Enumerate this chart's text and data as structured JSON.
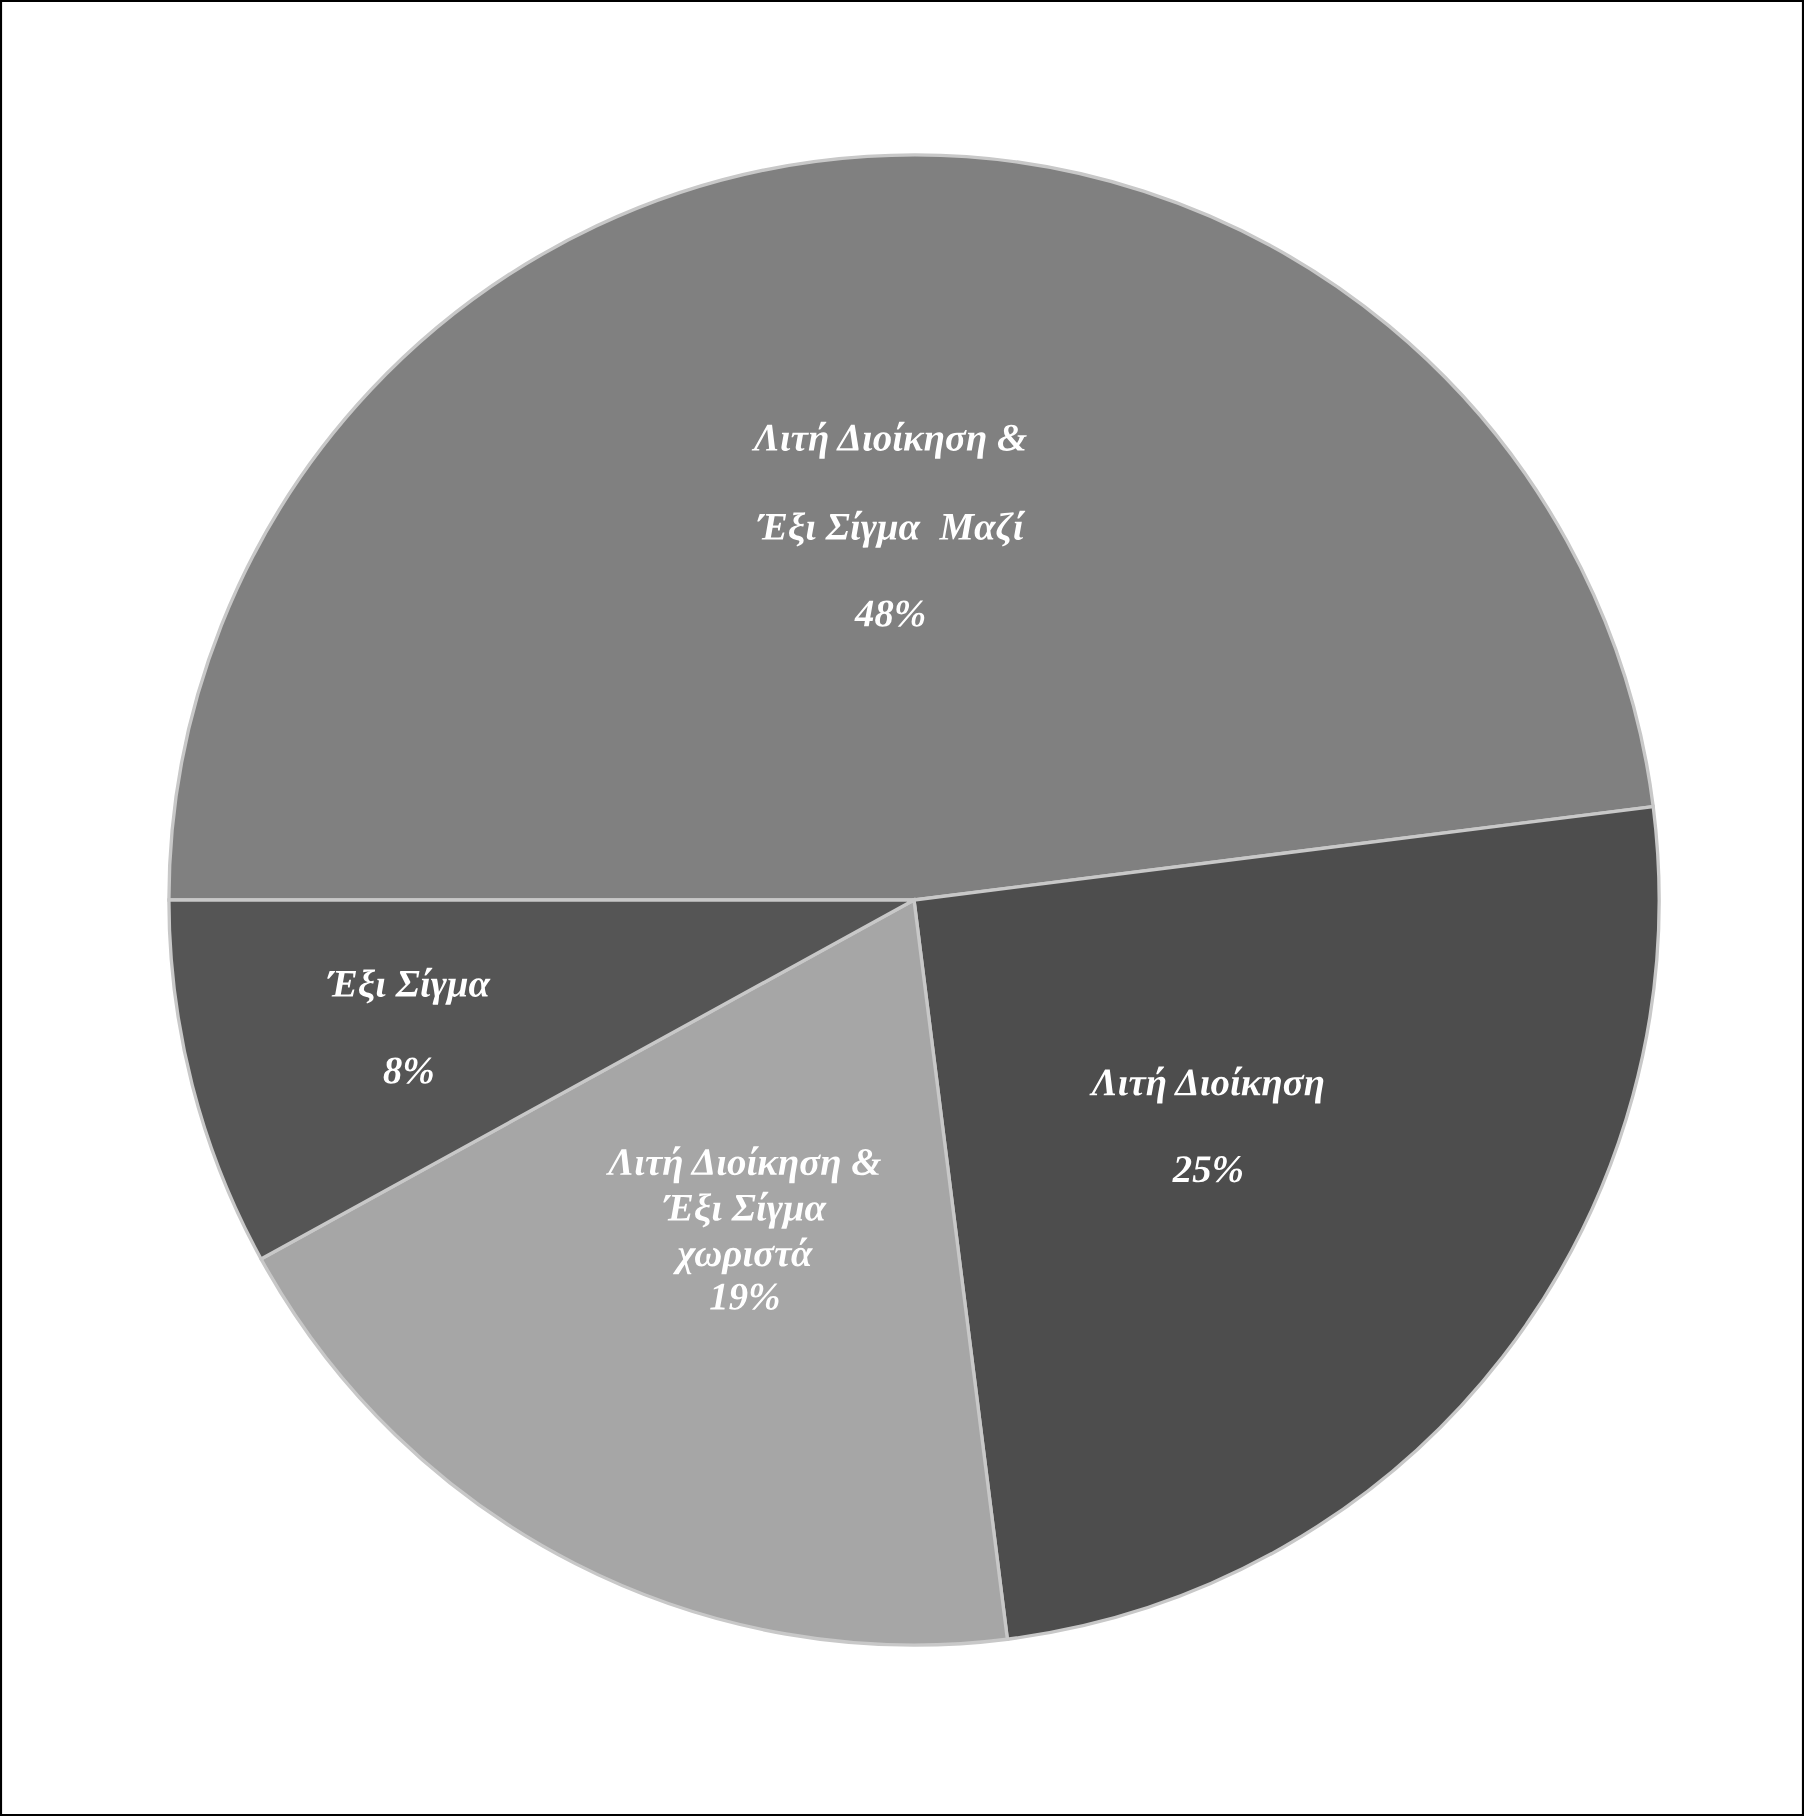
{
  "chart_data": {
    "type": "pie",
    "categories": [
      "Λιτή Διοίκηση &\n\nΈξι Σίγμα  Μαζί",
      "Λιτή Διοίκηση",
      "Λιτή Διοίκηση &\nΈξι Σίγμα\nχωριστά",
      "Έξι Σίγμα"
    ],
    "values": [
      48,
      25,
      19,
      8
    ],
    "colors": [
      "#808080",
      "#4d4d4d",
      "#a6a6a6",
      "#555555"
    ],
    "value_labels": [
      "48%",
      "25%",
      "19%",
      "8%"
    ]
  }
}
